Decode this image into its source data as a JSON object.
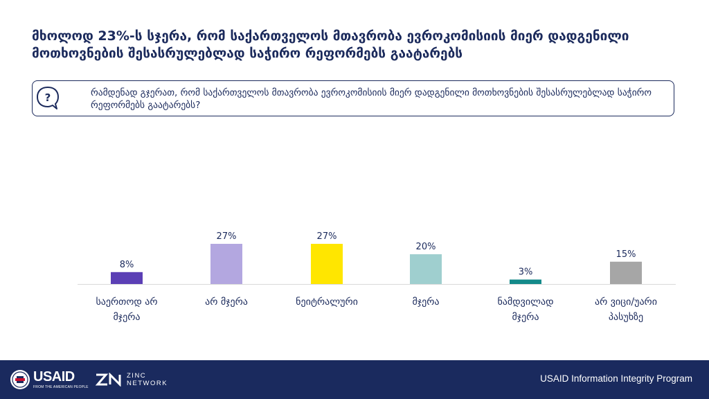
{
  "headline": "მხოლოდ 23%-ს სჯერა, რომ საქართველოს მთავრობა ევროკომისიის მიერ დადგენილი მოთხოვნების შესასრულებლად საჭირო რეფორმებს გაატარებს",
  "question": {
    "icon": "question-speech-bubble-icon",
    "text": "რამდენად გჯერათ, რომ საქართველოს მთავრობა ევროკომისიის მიერ დადგენილი მოთხოვნების შესასრულებლად საჭირო რეფორმებს გაატარებს?"
  },
  "chart_data": {
    "type": "bar",
    "title": "",
    "xlabel": "",
    "ylabel": "",
    "ylim": [
      0,
      30
    ],
    "grid": false,
    "legend": "none",
    "categories": [
      [
        "საერთოდ არ",
        "მჯერა"
      ],
      [
        "არ მჯერა"
      ],
      [
        "ნეიტრალური"
      ],
      [
        "მჯერა"
      ],
      [
        "ნამდვილად",
        "მჯერა"
      ],
      [
        "არ ვიცი/უარი",
        "პასუხზე"
      ]
    ],
    "values": [
      8,
      27,
      27,
      20,
      3,
      15
    ],
    "data_labels": [
      "8%",
      "27%",
      "27%",
      "20%",
      "3%",
      "15%"
    ],
    "colors": [
      "#5b3fb5",
      "#b3a7e0",
      "#ffe600",
      "#9fcfcf",
      "#138a8a",
      "#a6a6a6"
    ]
  },
  "footer": {
    "usaid_logo": "USAID",
    "usaid_tagline": "FROM THE AMERICAN PEOPLE",
    "zinc_logo_line1": "ZINC",
    "zinc_logo_line2": "NETWORK",
    "program": "USAID Information Integrity Program",
    "background": "#1a2a5e"
  }
}
